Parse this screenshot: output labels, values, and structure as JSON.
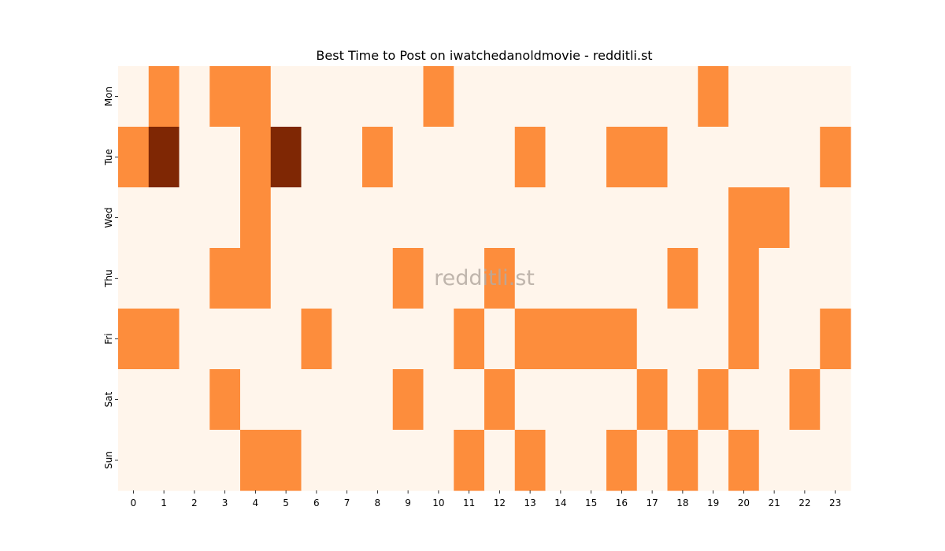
{
  "chart_data": {
    "type": "heatmap",
    "title": "Best Time to Post on iwatchedanoldmovie - redditli.st",
    "xlabel": "",
    "ylabel": "",
    "x_categories": [
      "0",
      "1",
      "2",
      "3",
      "4",
      "5",
      "6",
      "7",
      "8",
      "9",
      "10",
      "11",
      "12",
      "13",
      "14",
      "15",
      "16",
      "17",
      "18",
      "19",
      "20",
      "21",
      "22",
      "23"
    ],
    "y_categories": [
      "Mon",
      "Tue",
      "Wed",
      "Thu",
      "Fri",
      "Sat",
      "Sun"
    ],
    "values": [
      [
        0,
        1,
        0,
        1,
        1,
        0,
        0,
        0,
        0,
        0,
        1,
        0,
        0,
        0,
        0,
        0,
        0,
        0,
        0,
        1,
        0,
        0,
        0,
        0
      ],
      [
        1,
        3,
        0,
        0,
        1,
        3,
        0,
        0,
        1,
        0,
        0,
        0,
        0,
        1,
        0,
        0,
        1,
        1,
        0,
        0,
        0,
        0,
        0,
        1
      ],
      [
        0,
        0,
        0,
        0,
        1,
        0,
        0,
        0,
        0,
        0,
        0,
        0,
        0,
        0,
        0,
        0,
        0,
        0,
        0,
        0,
        1,
        1,
        0,
        0
      ],
      [
        0,
        0,
        0,
        1,
        1,
        0,
        0,
        0,
        0,
        1,
        0,
        0,
        1,
        0,
        0,
        0,
        0,
        0,
        1,
        0,
        1,
        0,
        0,
        0
      ],
      [
        1,
        1,
        0,
        0,
        0,
        0,
        1,
        0,
        0,
        0,
        0,
        1,
        0,
        1,
        1,
        1,
        1,
        0,
        0,
        0,
        1,
        0,
        0,
        1
      ],
      [
        0,
        0,
        0,
        1,
        0,
        0,
        0,
        0,
        0,
        1,
        0,
        0,
        1,
        0,
        0,
        0,
        0,
        1,
        0,
        1,
        0,
        0,
        1,
        0
      ],
      [
        0,
        0,
        0,
        0,
        1,
        1,
        0,
        0,
        0,
        0,
        0,
        1,
        0,
        1,
        0,
        0,
        1,
        0,
        1,
        0,
        1,
        0,
        0,
        0
      ]
    ],
    "value_range": [
      0,
      3
    ],
    "colormap": "Oranges",
    "colors": {
      "level_0": "#fff5eb",
      "level_1": "#fd8d3c",
      "level_3": "#7f2704"
    },
    "colorbar": false,
    "grid": false
  },
  "watermark": "redditli.st"
}
